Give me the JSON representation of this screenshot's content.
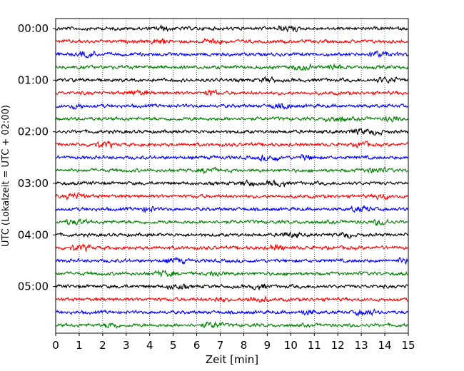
{
  "chart_data": {
    "type": "line",
    "title": "",
    "xlabel": "Zeit  [min]",
    "ylabel": "UTC (Lokalzeit = UTC + 02:00)",
    "xlim": [
      0,
      15
    ],
    "x_ticks": [
      0,
      1,
      2,
      3,
      4,
      5,
      6,
      7,
      8,
      9,
      10,
      11,
      12,
      13,
      14,
      15
    ],
    "x_tick_labels": [
      "0",
      "1",
      "2",
      "3",
      "4",
      "5",
      "6",
      "7",
      "8",
      "9",
      "10",
      "11",
      "12",
      "13",
      "14",
      "15"
    ],
    "y_tick_labels": [
      "00:00",
      "01:00",
      "02:00",
      "03:00",
      "04:00",
      "05:00"
    ],
    "trace_interval_minutes": 15,
    "trace_count": 24,
    "trace_colors": [
      "#000000",
      "#ff0000",
      "#0000ff",
      "#008000"
    ],
    "grid": "vertical dotted",
    "legend": "none"
  }
}
